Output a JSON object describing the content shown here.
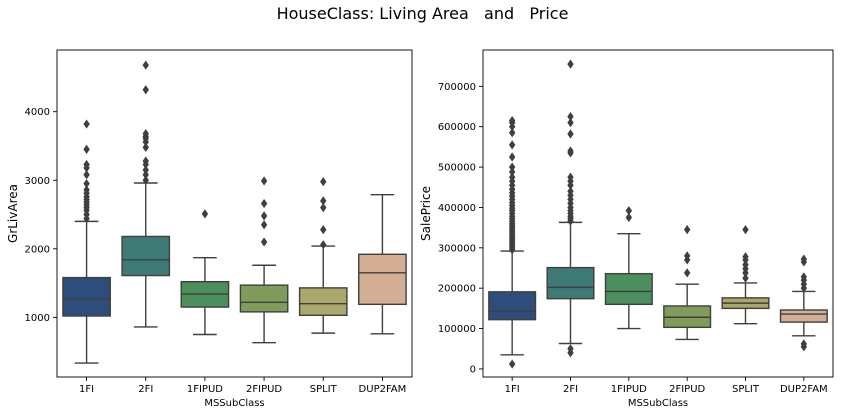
{
  "figure": {
    "suptitle": "HouseClass: Living Area   and   Price"
  },
  "chart_data": [
    {
      "type": "box",
      "xlabel": "MSSubClass",
      "ylabel": "GrLivArea",
      "ylim": [
        130,
        4900
      ],
      "yticks": [
        1000,
        2000,
        3000,
        4000
      ],
      "ytick_labels": [
        "1000",
        "2000",
        "3000",
        "4000"
      ],
      "categories": [
        "1FI",
        "2FI",
        "1FIPUD",
        "2FIPUD",
        "SPLIT",
        "DUP2FAM"
      ],
      "colors": [
        "#2e4d7a",
        "#3e7b76",
        "#4b8f5c",
        "#7f9c5a",
        "#aaa86a",
        "#d3ae95"
      ],
      "grid": false,
      "boxes": [
        {
          "min": 334,
          "q1": 1020,
          "median": 1270,
          "q3": 1580,
          "max": 2400,
          "outliers": [
            2440,
            2500,
            2560,
            2600,
            2640,
            2680,
            2720,
            2760,
            2810,
            2860,
            2950,
            3080,
            3180,
            3230,
            3450,
            3820
          ]
        },
        {
          "min": 860,
          "q1": 1610,
          "median": 1840,
          "q3": 2180,
          "max": 2960,
          "outliers": [
            3000,
            3080,
            3150,
            3230,
            3280,
            3480,
            3560,
            3610,
            3640,
            3680,
            4320,
            4680
          ]
        },
        {
          "min": 750,
          "q1": 1150,
          "median": 1340,
          "q3": 1520,
          "max": 1870,
          "outliers": [
            2510
          ]
        },
        {
          "min": 630,
          "q1": 1080,
          "median": 1220,
          "q3": 1470,
          "max": 1760,
          "outliers": [
            2100,
            2350,
            2480,
            2660,
            2990
          ]
        },
        {
          "min": 770,
          "q1": 1030,
          "median": 1200,
          "q3": 1430,
          "max": 2040,
          "outliers": [
            2060,
            2280,
            2600,
            2700,
            2980
          ]
        },
        {
          "min": 760,
          "q1": 1190,
          "median": 1650,
          "q3": 1920,
          "max": 2790,
          "outliers": []
        }
      ]
    },
    {
      "type": "box",
      "xlabel": "MSSubClass",
      "ylabel": "SalePrice",
      "ylim": [
        -20000,
        790000
      ],
      "yticks": [
        0,
        100000,
        200000,
        300000,
        400000,
        500000,
        600000,
        700000
      ],
      "ytick_labels": [
        "0",
        "100000",
        "200000",
        "300000",
        "400000",
        "500000",
        "600000",
        "700000"
      ],
      "categories": [
        "1FI",
        "2FI",
        "1FIPUD",
        "2FIPUD",
        "SPLIT",
        "DUP2FAM"
      ],
      "colors": [
        "#2e4d7a",
        "#3e7b76",
        "#4b8f5c",
        "#7f9c5a",
        "#aaa86a",
        "#d3ae95"
      ],
      "grid": false,
      "boxes": [
        {
          "min": 35000,
          "q1": 122000,
          "median": 143000,
          "q3": 191000,
          "max": 292000,
          "outliers": [
            12000,
            295000,
            300000,
            305000,
            310000,
            315000,
            320000,
            325000,
            330000,
            335000,
            340000,
            345000,
            350000,
            355000,
            360000,
            366000,
            372000,
            378000,
            385000,
            392000,
            398000,
            405000,
            412000,
            420000,
            428000,
            436000,
            445000,
            455000,
            465000,
            475000,
            488000,
            500000,
            525000,
            555000,
            585000,
            600000,
            610000,
            615000
          ]
        },
        {
          "min": 63000,
          "q1": 174000,
          "median": 202000,
          "q3": 251000,
          "max": 363000,
          "outliers": [
            40000,
            50000,
            366000,
            372000,
            378000,
            385000,
            392000,
            400000,
            410000,
            420000,
            430000,
            440000,
            455000,
            465000,
            475000,
            535000,
            540000,
            582000,
            610000,
            625000,
            755000
          ]
        },
        {
          "min": 100000,
          "q1": 160000,
          "median": 192000,
          "q3": 236000,
          "max": 335000,
          "outliers": [
            375000,
            392000
          ]
        },
        {
          "min": 73000,
          "q1": 103000,
          "median": 128000,
          "q3": 156000,
          "max": 210000,
          "outliers": [
            238000,
            270000,
            280000,
            345000
          ]
        },
        {
          "min": 112000,
          "q1": 150000,
          "median": 163000,
          "q3": 176000,
          "max": 213000,
          "outliers": [
            225000,
            238000,
            248000,
            258000,
            270000,
            278000,
            345000
          ]
        },
        {
          "min": 82000,
          "q1": 116000,
          "median": 136000,
          "q3": 146000,
          "max": 192000,
          "outliers": [
            55000,
            62000,
            200000,
            210000,
            220000,
            228000,
            265000,
            272000
          ]
        }
      ]
    }
  ]
}
